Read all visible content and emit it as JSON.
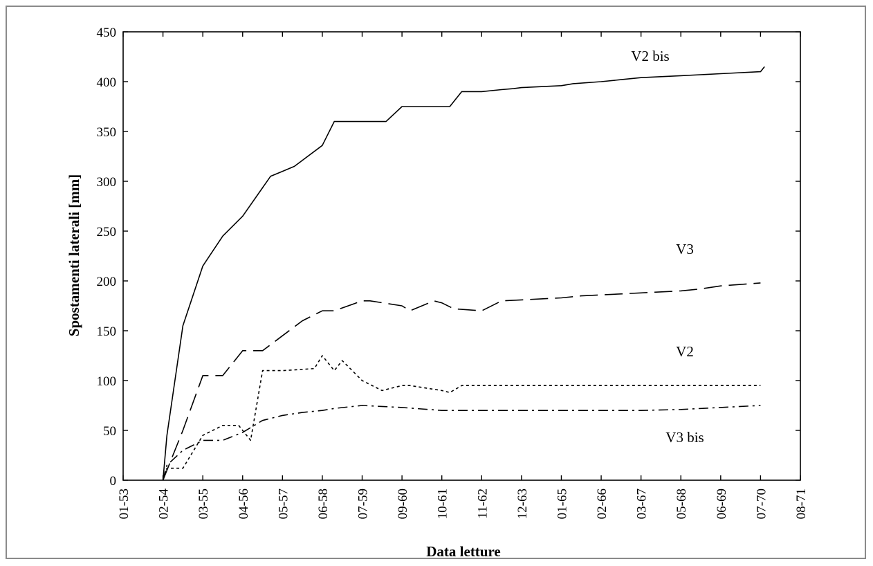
{
  "chart_data": {
    "type": "line",
    "title": "",
    "xlabel": "Data letture",
    "ylabel": "Spostamenti laterali [mm]",
    "ylim": [
      0,
      450
    ],
    "yticks": [
      0,
      50,
      100,
      150,
      200,
      250,
      300,
      350,
      400,
      450
    ],
    "categories": [
      "01-53",
      "02-54",
      "03-55",
      "04-56",
      "05-57",
      "06-58",
      "07-59",
      "09-60",
      "10-61",
      "11-62",
      "12-63",
      "01-65",
      "02-66",
      "03-67",
      "05-68",
      "06-69",
      "07-70",
      "08-71"
    ],
    "x_note": "x values are positions on the category axis (0 = 01-53, 17 = 08-71)",
    "grid": false,
    "legend": "none",
    "colors": {
      "line": "#000000",
      "frame": "#8a8a8a"
    },
    "series": [
      {
        "name": "V2 bis",
        "style": "solid",
        "x": [
          1.0,
          1.1,
          1.5,
          2.0,
          2.5,
          3.0,
          3.7,
          4.0,
          4.3,
          5.0,
          5.3,
          6.0,
          6.6,
          7.0,
          7.2,
          8.0,
          8.2,
          8.5,
          9.0,
          9.5,
          9.8,
          10.0,
          10.5,
          11.0,
          11.3,
          12.0,
          12.5,
          13.0,
          14.0,
          15.0,
          16.0,
          16.1
        ],
        "y": [
          0,
          45,
          155,
          215,
          245,
          265,
          305,
          310,
          315,
          336,
          360,
          360,
          360,
          375,
          375,
          375,
          375,
          390,
          390,
          392,
          393,
          394,
          395,
          396,
          398,
          400,
          402,
          404,
          406,
          408,
          410,
          415
        ]
      },
      {
        "name": "V3",
        "style": "long-dash",
        "x": [
          1.0,
          1.2,
          1.5,
          2.0,
          2.5,
          3.0,
          3.3,
          3.5,
          4.0,
          4.5,
          5.0,
          5.3,
          6.0,
          6.2,
          7.0,
          7.2,
          7.8,
          8.0,
          8.3,
          9.0,
          9.5,
          10.0,
          10.5,
          11.0,
          11.5,
          12.0,
          13.0,
          14.0,
          14.5,
          15.0,
          16.0
        ],
        "y": [
          0,
          20,
          50,
          105,
          105,
          130,
          130,
          130,
          145,
          160,
          170,
          170,
          180,
          180,
          175,
          170,
          180,
          178,
          172,
          170,
          180,
          181,
          182,
          183,
          185,
          186,
          188,
          190,
          192,
          195,
          198
        ]
      },
      {
        "name": "V2",
        "style": "short-dash",
        "x": [
          1.0,
          1.1,
          1.5,
          2.0,
          2.5,
          2.9,
          3.2,
          3.5,
          3.8,
          4.0,
          4.8,
          5.0,
          5.3,
          5.5,
          5.7,
          6.0,
          6.5,
          7.0,
          7.2,
          8.0,
          8.2,
          8.5,
          9.0,
          10.0,
          11.0,
          12.0,
          13.0,
          14.0,
          15.0,
          16.0
        ],
        "y": [
          0,
          12,
          12,
          45,
          55,
          55,
          40,
          110,
          110,
          110,
          112,
          125,
          110,
          120,
          112,
          100,
          90,
          95,
          95,
          90,
          88,
          95,
          95,
          95,
          95,
          95,
          95,
          95,
          95,
          95
        ]
      },
      {
        "name": "V3 bis",
        "style": "dash-dot",
        "x": [
          1.0,
          1.1,
          1.5,
          2.0,
          2.5,
          3.0,
          3.5,
          4.0,
          4.5,
          5.0,
          5.3,
          6.0,
          7.0,
          8.0,
          9.0,
          10.0,
          11.0,
          12.0,
          13.0,
          14.0,
          15.0,
          16.0
        ],
        "y": [
          0,
          15,
          30,
          40,
          40,
          48,
          60,
          65,
          68,
          70,
          72,
          75,
          73,
          70,
          70,
          70,
          70,
          70,
          70,
          71,
          73,
          75
        ]
      }
    ],
    "annotations": [
      "V2 bis",
      "V3",
      "V2",
      "V3 bis"
    ]
  }
}
